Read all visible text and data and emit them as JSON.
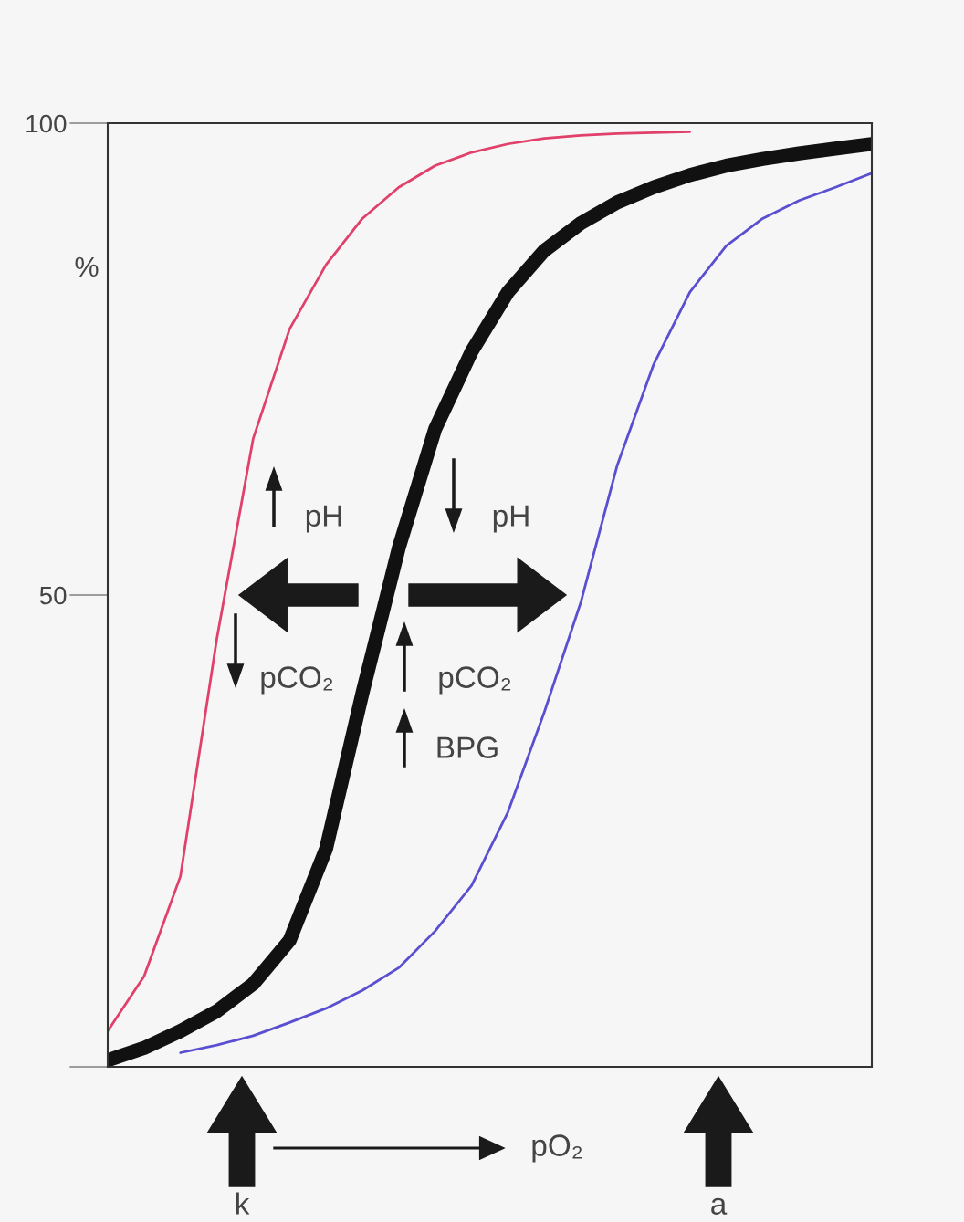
{
  "chart_data": {
    "type": "line",
    "ylabel": "%",
    "xlabel": "pO₂",
    "categories": [
      null,
      null,
      null,
      null,
      null,
      null,
      null,
      null,
      null,
      null,
      null,
      null,
      null,
      null,
      null,
      null,
      null,
      null,
      null,
      null,
      null,
      null
    ],
    "series": [
      {
        "color": "#e0406a",
        "values": [
          3.8,
          9.6,
          20.2,
          45.4,
          66.6,
          78.2,
          85.0,
          89.9,
          93.2,
          95.5,
          96.9,
          97.8,
          98.4,
          98.7,
          98.9,
          99.0,
          99.1,
          null,
          null,
          null,
          null,
          null
        ]
      },
      {
        "color": "#111111",
        "values": [
          0.7,
          2.0,
          3.8,
          5.9,
          8.8,
          13.4,
          23.1,
          39.6,
          55.0,
          67.6,
          75.8,
          82.1,
          86.5,
          89.4,
          91.6,
          93.2,
          94.5,
          95.5,
          96.2,
          96.8,
          97.3,
          97.8
        ]
      },
      {
        "color": "#5a4fd0",
        "values": [
          null,
          null,
          1.5,
          2.3,
          3.3,
          4.7,
          6.2,
          8.1,
          10.5,
          14.4,
          19.2,
          27.0,
          37.6,
          49.2,
          63.7,
          74.4,
          82.1,
          87.0,
          89.9,
          91.8,
          93.2,
          94.7
        ]
      }
    ],
    "ylim": [
      0,
      100
    ],
    "yticks": [
      {
        "value": 0,
        "label": null
      },
      50,
      100
    ],
    "grid": false,
    "legend": false,
    "annotations": [
      "pH",
      "pH",
      "pCO₂",
      "pCO₂",
      "BPG",
      "k",
      "a"
    ]
  }
}
